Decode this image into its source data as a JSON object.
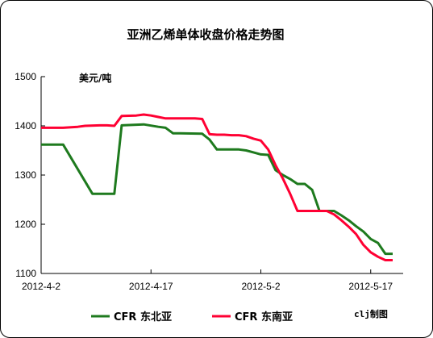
{
  "chart_data": {
    "type": "line",
    "title": "亚洲乙烯单体收盘价格走势图",
    "unit_label": "美元/吨",
    "ylim": [
      1100,
      1500
    ],
    "yticks": [
      1100,
      1200,
      1300,
      1400,
      1500
    ],
    "xlim": [
      0,
      48
    ],
    "xticks": [
      {
        "x": 0,
        "label": "2012-4-2"
      },
      {
        "x": 15,
        "label": "2012-4-17"
      },
      {
        "x": 30,
        "label": "2012-5-2"
      },
      {
        "x": 45,
        "label": "2012-5-17"
      }
    ],
    "grid": false,
    "legend_position": "bottom",
    "credit": "clj制图",
    "series": [
      {
        "name": "CFR 东北亚",
        "color": "#1e7a1e",
        "x": [
          0,
          3,
          7,
          10,
          11,
          14,
          16,
          17,
          18,
          19,
          22,
          23,
          24,
          27,
          28,
          29,
          30,
          31,
          32,
          33,
          34,
          35,
          36,
          37,
          38,
          39,
          40,
          41,
          42,
          43,
          44,
          45,
          46,
          47,
          48
        ],
        "y": [
          1362,
          1362,
          1262,
          1262,
          1401,
          1403,
          1398,
          1396,
          1385,
          1385,
          1384,
          1372,
          1352,
          1352,
          1350,
          1346,
          1342,
          1341,
          1310,
          1300,
          1292,
          1282,
          1282,
          1270,
          1227,
          1227,
          1227,
          1218,
          1208,
          1196,
          1185,
          1170,
          1162,
          1140,
          1140
        ]
      },
      {
        "name": "CFR 东南亚",
        "color": "#ff0033",
        "x": [
          0,
          3,
          5,
          6,
          8,
          9,
          10,
          11,
          13,
          14,
          15,
          16,
          17,
          18,
          19,
          20,
          21,
          22,
          23,
          24,
          25,
          26,
          27,
          28,
          29,
          30,
          31,
          32,
          33,
          34,
          35,
          36,
          37,
          38,
          39,
          40,
          41,
          42,
          43,
          44,
          45,
          46,
          47,
          48
        ],
        "y": [
          1396,
          1396,
          1398,
          1400,
          1401,
          1401,
          1400,
          1420,
          1421,
          1423,
          1421,
          1418,
          1415,
          1415,
          1415,
          1415,
          1415,
          1414,
          1383,
          1382,
          1382,
          1381,
          1381,
          1379,
          1374,
          1370,
          1352,
          1320,
          1293,
          1262,
          1227,
          1227,
          1227,
          1227,
          1227,
          1220,
          1208,
          1195,
          1180,
          1158,
          1143,
          1134,
          1127,
          1127
        ]
      }
    ]
  }
}
